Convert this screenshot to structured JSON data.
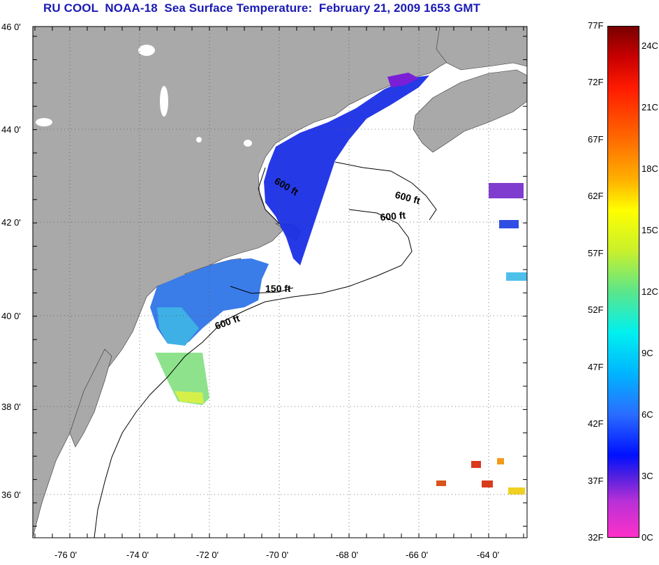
{
  "title": "RU COOL  NOAA-18  Sea Surface Temperature:  February 21, 2009 1653 GMT",
  "map": {
    "lat_ticks": [
      "46 0'",
      "44 0'",
      "42 0'",
      "40 0'",
      "38 0'",
      "36 0'"
    ],
    "lon_ticks": [
      "-76 0'",
      "-74 0'",
      "-72 0'",
      "-70 0'",
      "-68 0'",
      "-66 0'",
      "-64 0'"
    ],
    "contour_labels": [
      "600 ft",
      "600 ft",
      "600 ft",
      "150 ft",
      "600 ft"
    ],
    "colors": {
      "land": "#a9a9a9",
      "ocean": "#ffffff",
      "title": "#1a1ab4"
    }
  },
  "colorbar": {
    "fahrenheit": [
      "77F",
      "72F",
      "67F",
      "62F",
      "57F",
      "52F",
      "47F",
      "42F",
      "37F",
      "32F"
    ],
    "celsius": [
      "24C",
      "21C",
      "18C",
      "15C",
      "12C",
      "9C",
      "6C",
      "3C",
      "0C"
    ],
    "range_f": [
      32,
      77
    ],
    "range_c": [
      0,
      25
    ]
  }
}
